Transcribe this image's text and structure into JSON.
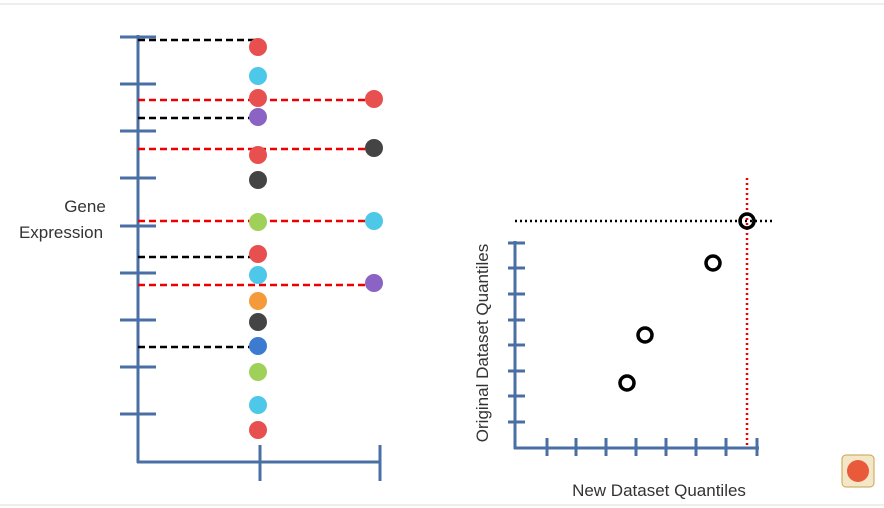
{
  "left_panel": {
    "y_label_lines": [
      "Gene",
      "Expression"
    ]
  },
  "right_panel": {
    "y_label": "Original Dataset Quantiles",
    "x_label": "New Dataset Quantiles"
  }
}
